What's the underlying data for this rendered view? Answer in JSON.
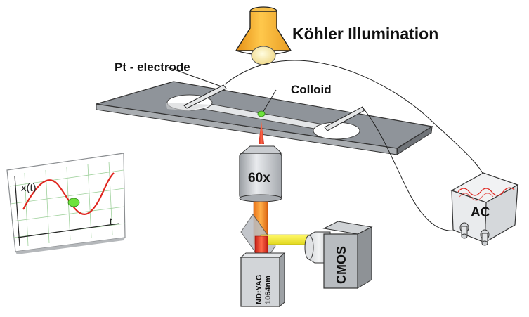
{
  "labels": {
    "illumination": "Köhler Illumination",
    "electrode": "Pt - electrode",
    "colloid": "Colloid",
    "objective": "60x",
    "laser_line1": "ND:YAG",
    "laser_line2": "1064nm",
    "camera": "CMOS",
    "source": "AC",
    "plot_y": "x(t)",
    "plot_x": "t"
  },
  "colors": {
    "lamp": "#f2a92f",
    "stage": "#8f949a",
    "laser": "#e8412b",
    "imaging_beam": "#f3ec2e",
    "colloid": "#6ee23c",
    "trace": "#e0261f",
    "grid": "#9fd19c"
  },
  "icons": {
    "lamp": "lamp-icon",
    "waveform": "sine-wave-icon",
    "switches": "toggle-switch-icon"
  }
}
